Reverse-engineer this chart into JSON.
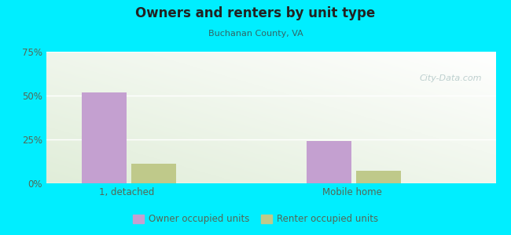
{
  "title": "Owners and renters by unit type",
  "subtitle": "Buchanan County, VA",
  "categories": [
    "1, detached",
    "Mobile home"
  ],
  "owner_values": [
    52,
    24
  ],
  "renter_values": [
    11,
    7
  ],
  "owner_color": "#c4a0d0",
  "renter_color": "#bfc98a",
  "ylim": [
    0,
    75
  ],
  "yticks": [
    0,
    25,
    50,
    75
  ],
  "ytick_labels": [
    "0%",
    "25%",
    "50%",
    "75%"
  ],
  "background_outer": "#00eeff",
  "watermark": "City-Data.com",
  "legend_labels": [
    "Owner occupied units",
    "Renter occupied units"
  ],
  "title_color": "#222222",
  "subtitle_color": "#336666",
  "tick_color": "#556655"
}
